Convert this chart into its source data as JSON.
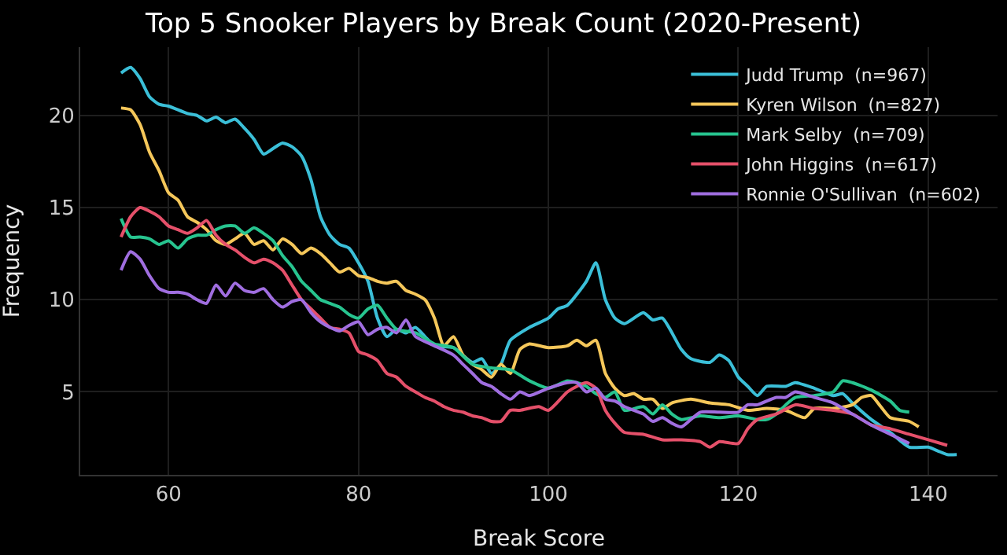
{
  "chart_data": {
    "type": "line",
    "title": "Top 5 Snooker Players by Break Count (2020-Present)",
    "xlabel": "Break Score",
    "ylabel": "Frequency",
    "xlim": [
      50.7,
      147.3
    ],
    "ylim": [
      0.5,
      23.7
    ],
    "xticks": [
      60,
      80,
      100,
      120,
      140
    ],
    "yticks": [
      5,
      10,
      15,
      20
    ],
    "grid": true,
    "legend": "top right",
    "marker": "none",
    "line_style": "solid",
    "series": [
      {
        "name": "Judd Trump  (n=967)",
        "color": "#3bbfd8",
        "x": [
          55,
          56,
          57,
          58,
          59,
          60,
          62,
          63,
          64,
          65,
          66,
          67,
          68,
          69,
          70,
          71,
          72,
          73,
          74,
          75,
          76,
          77,
          78,
          79,
          80,
          81,
          82,
          83,
          84,
          85,
          86,
          87,
          88,
          90,
          92,
          93,
          94,
          95,
          96,
          98,
          100,
          101,
          102,
          104,
          105,
          106,
          107,
          108,
          110,
          111,
          112,
          114,
          115,
          117,
          118,
          119,
          120,
          121,
          122,
          123,
          125,
          126,
          128,
          130,
          131,
          132,
          134,
          136,
          138,
          140,
          141,
          142,
          143
        ],
        "values": [
          22.3,
          22.6,
          22.0,
          21.0,
          20.6,
          20.5,
          20.1,
          20.0,
          19.7,
          19.9,
          19.6,
          19.8,
          19.3,
          18.7,
          17.9,
          18.2,
          18.5,
          18.3,
          17.8,
          16.5,
          14.5,
          13.5,
          13.0,
          12.8,
          12.0,
          11.0,
          9.0,
          8.0,
          8.4,
          8.2,
          8.5,
          8.0,
          7.5,
          7.4,
          6.6,
          6.8,
          6.0,
          6.5,
          7.8,
          8.5,
          9.0,
          9.5,
          9.7,
          11.0,
          12.0,
          10.0,
          9.0,
          8.7,
          9.3,
          8.9,
          9.0,
          7.3,
          6.8,
          6.6,
          7.0,
          6.7,
          5.8,
          5.3,
          4.8,
          5.3,
          5.3,
          5.5,
          5.2,
          4.8,
          4.9,
          4.4,
          3.5,
          2.8,
          2.0,
          2.0,
          1.8,
          1.6,
          1.6
        ]
      },
      {
        "name": "Kyren Wilson  (n=827)",
        "color": "#f5c75a",
        "x": [
          55,
          56,
          57,
          58,
          59,
          60,
          61,
          62,
          63,
          64,
          65,
          66,
          67,
          68,
          69,
          70,
          71,
          72,
          73,
          74,
          75,
          76,
          77,
          78,
          79,
          80,
          81,
          82,
          83,
          84,
          85,
          86,
          87,
          88,
          89,
          90,
          91,
          92,
          93,
          94,
          95,
          96,
          97,
          98,
          100,
          102,
          103,
          104,
          105,
          106,
          107,
          108,
          109,
          110,
          111,
          112,
          113,
          115,
          117,
          119,
          121,
          123,
          125,
          127,
          128,
          130,
          132,
          133,
          134,
          135,
          136,
          138,
          139
        ],
        "values": [
          20.4,
          20.3,
          19.5,
          18.0,
          17.0,
          15.8,
          15.4,
          14.5,
          14.2,
          13.8,
          13.2,
          13.0,
          13.3,
          13.6,
          13.0,
          13.2,
          12.7,
          13.3,
          13.0,
          12.5,
          12.8,
          12.5,
          12.0,
          11.5,
          11.7,
          11.3,
          11.2,
          11.0,
          10.9,
          11.0,
          10.5,
          10.3,
          10.0,
          9.0,
          7.5,
          8.0,
          7.0,
          6.5,
          6.2,
          5.8,
          6.5,
          6.0,
          7.3,
          7.6,
          7.4,
          7.5,
          7.8,
          7.5,
          7.8,
          6.0,
          5.2,
          4.8,
          4.9,
          4.6,
          4.6,
          4.1,
          4.4,
          4.6,
          4.4,
          4.3,
          4.0,
          4.1,
          4.0,
          3.6,
          4.1,
          4.1,
          4.3,
          4.7,
          4.8,
          4.2,
          3.6,
          3.4,
          3.1
        ]
      },
      {
        "name": "Mark Selby  (n=709)",
        "color": "#27c48f",
        "x": [
          55,
          56,
          57,
          58,
          59,
          60,
          61,
          62,
          63,
          64,
          65,
          66,
          67,
          68,
          69,
          70,
          71,
          72,
          73,
          74,
          75,
          76,
          77,
          78,
          79,
          80,
          81,
          82,
          83,
          84,
          86,
          88,
          90,
          92,
          94,
          96,
          98,
          100,
          102,
          103,
          104,
          105,
          106,
          107,
          108,
          110,
          111,
          112,
          113,
          114,
          116,
          118,
          120,
          122,
          123,
          124,
          125,
          126,
          128,
          130,
          131,
          132,
          134,
          136,
          137,
          138
        ],
        "values": [
          14.4,
          13.4,
          13.4,
          13.3,
          13.0,
          13.2,
          12.8,
          13.3,
          13.5,
          13.5,
          13.8,
          14.0,
          14.0,
          13.6,
          13.9,
          13.6,
          13.2,
          12.4,
          11.8,
          11.0,
          10.5,
          10.0,
          9.8,
          9.6,
          9.2,
          9.0,
          9.5,
          9.7,
          9.0,
          8.4,
          8.2,
          7.6,
          7.4,
          6.5,
          6.3,
          6.2,
          5.6,
          5.2,
          5.6,
          5.5,
          5.3,
          4.9,
          4.7,
          5.0,
          4.0,
          4.2,
          3.8,
          4.3,
          3.8,
          3.5,
          3.7,
          3.6,
          3.7,
          3.5,
          3.5,
          3.8,
          4.3,
          4.7,
          4.8,
          5.0,
          5.6,
          5.5,
          5.1,
          4.5,
          4.0,
          3.9
        ]
      },
      {
        "name": "John Higgins  (n=617)",
        "color": "#e5506a",
        "x": [
          55,
          56,
          57,
          58,
          59,
          60,
          61,
          62,
          63,
          64,
          65,
          66,
          67,
          68,
          69,
          70,
          71,
          72,
          73,
          74,
          75,
          76,
          77,
          78,
          79,
          80,
          81,
          82,
          83,
          84,
          85,
          86,
          87,
          88,
          89,
          90,
          91,
          92,
          93,
          94,
          95,
          96,
          97,
          99,
          100,
          102,
          103,
          104,
          105,
          106,
          107,
          108,
          110,
          112,
          114,
          116,
          117,
          118,
          120,
          121,
          122,
          124,
          126,
          128,
          130,
          132,
          134,
          136,
          138,
          140,
          142
        ],
        "values": [
          13.4,
          14.5,
          15.0,
          14.8,
          14.5,
          14.0,
          13.8,
          13.6,
          13.9,
          14.3,
          13.5,
          13.0,
          12.7,
          12.3,
          12.0,
          12.2,
          12.0,
          11.6,
          10.8,
          10.0,
          9.5,
          9.0,
          8.5,
          8.4,
          8.2,
          7.2,
          7.0,
          6.7,
          6.0,
          5.8,
          5.3,
          5.0,
          4.7,
          4.5,
          4.2,
          4.0,
          3.9,
          3.7,
          3.6,
          3.4,
          3.4,
          4.0,
          4.0,
          4.2,
          4.0,
          5.0,
          5.3,
          5.5,
          5.2,
          4.0,
          3.3,
          2.8,
          2.7,
          2.4,
          2.4,
          2.3,
          2.0,
          2.3,
          2.2,
          3.0,
          3.5,
          3.8,
          4.3,
          4.1,
          4.0,
          3.8,
          3.2,
          3.0,
          2.7,
          2.4,
          2.1
        ]
      },
      {
        "name": "Ronnie O'Sullivan  (n=602)",
        "color": "#a06ee0",
        "x": [
          55,
          56,
          57,
          58,
          59,
          60,
          61,
          62,
          63,
          64,
          65,
          66,
          67,
          68,
          69,
          70,
          71,
          72,
          73,
          74,
          75,
          76,
          77,
          78,
          79,
          80,
          81,
          82,
          83,
          84,
          85,
          86,
          88,
          90,
          91,
          92,
          93,
          94,
          95,
          96,
          97,
          98,
          100,
          102,
          103,
          104,
          105,
          106,
          107,
          108,
          109,
          110,
          111,
          112,
          113,
          114,
          115,
          116,
          118,
          120,
          121,
          122,
          124,
          125,
          126,
          128,
          130,
          132,
          134,
          136,
          138
        ],
        "values": [
          11.6,
          12.6,
          12.2,
          11.3,
          10.6,
          10.4,
          10.4,
          10.3,
          10.0,
          9.8,
          10.8,
          10.2,
          10.9,
          10.5,
          10.4,
          10.6,
          10.0,
          9.6,
          9.9,
          10.0,
          9.3,
          8.8,
          8.5,
          8.3,
          8.6,
          8.8,
          8.1,
          8.4,
          8.5,
          8.2,
          8.9,
          8.0,
          7.5,
          7.0,
          6.5,
          6.0,
          5.5,
          5.3,
          4.9,
          4.6,
          5.0,
          4.8,
          5.2,
          5.5,
          5.5,
          5.0,
          5.2,
          4.6,
          4.5,
          4.2,
          4.0,
          3.8,
          3.4,
          3.6,
          3.3,
          3.1,
          3.5,
          3.9,
          3.9,
          3.9,
          4.3,
          4.3,
          4.7,
          4.7,
          5.0,
          4.7,
          4.4,
          3.8,
          3.2,
          2.7,
          2.2
        ]
      }
    ]
  }
}
